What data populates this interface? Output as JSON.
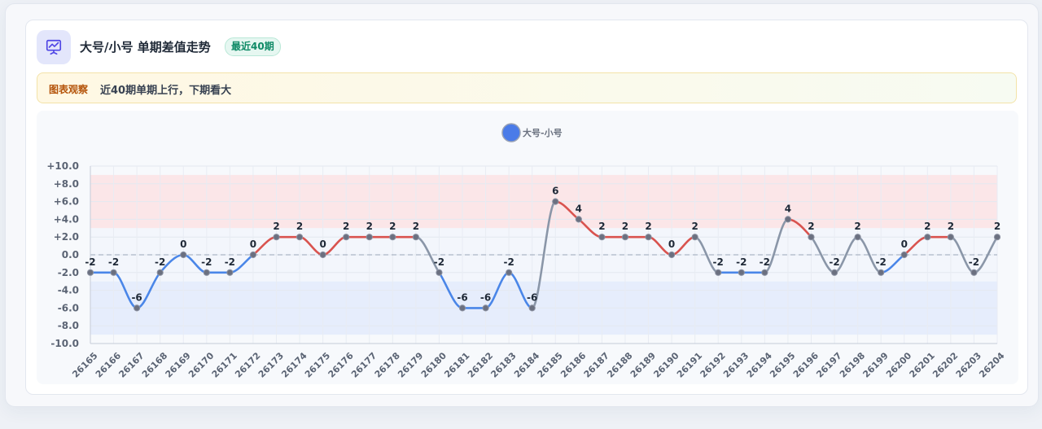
{
  "header": {
    "title": "大号/小号 单期差值走势",
    "badge": "最近40期",
    "icon": "presentation-chart-icon"
  },
  "note": {
    "label": "图表观察",
    "text": "近40期单期上行，下期看大"
  },
  "colors": {
    "up": "#d9534f",
    "down": "#4a86e8",
    "flat": "#8a96a8",
    "band_high": "#fbe3e4",
    "band_low": "#e3ebfb",
    "band_mid": "#f2f6fb",
    "legend": "#4a7be8"
  },
  "chart_data": {
    "type": "line",
    "legend": "大号-小号",
    "legend_position": "top-center",
    "grid": true,
    "ylim": [
      -10,
      10
    ],
    "yticks": [
      "+10.0",
      "+8.0",
      "+6.0",
      "+4.0",
      "+2.0",
      "0.0",
      "-2.0",
      "-4.0",
      "-6.0",
      "-8.0",
      "-10.0"
    ],
    "categories": [
      "26165",
      "26166",
      "26167",
      "26168",
      "26169",
      "26170",
      "26171",
      "26172",
      "26173",
      "26174",
      "26175",
      "26176",
      "26177",
      "26178",
      "26179",
      "26180",
      "26181",
      "26182",
      "26183",
      "26184",
      "26185",
      "26186",
      "26187",
      "26188",
      "26189",
      "26190",
      "26191",
      "26192",
      "26193",
      "26194",
      "26195",
      "26196",
      "26197",
      "26198",
      "26199",
      "26200",
      "26201",
      "26202",
      "26203",
      "26204"
    ],
    "values": [
      -2,
      -2,
      -6,
      -2,
      0,
      -2,
      -2,
      0,
      2,
      2,
      0,
      2,
      2,
      2,
      2,
      -2,
      -6,
      -6,
      -2,
      -6,
      6,
      4,
      2,
      2,
      2,
      0,
      2,
      -2,
      -2,
      -2,
      4,
      2,
      -2,
      2,
      -2,
      0,
      2,
      2,
      -2,
      2
    ],
    "labels": [
      "-2",
      "-2",
      "-6",
      "-2",
      "0",
      "-2",
      "-2",
      "0",
      "2",
      "2",
      "0",
      "2",
      "2",
      "2",
      "2",
      "-2",
      "-6",
      "-6",
      "-2",
      "-6",
      "6",
      "4",
      "2",
      "2",
      "2",
      "0",
      "2",
      "-2",
      "-2",
      "-2",
      "4",
      "2",
      "-2",
      "2",
      "-2",
      "0",
      "2",
      "2",
      "-2",
      "2"
    ],
    "bands": [
      {
        "from": 3,
        "to": 9,
        "role": "high"
      },
      {
        "from": -3,
        "to": 3,
        "role": "mid"
      },
      {
        "from": -9,
        "to": -3,
        "role": "low"
      }
    ]
  }
}
